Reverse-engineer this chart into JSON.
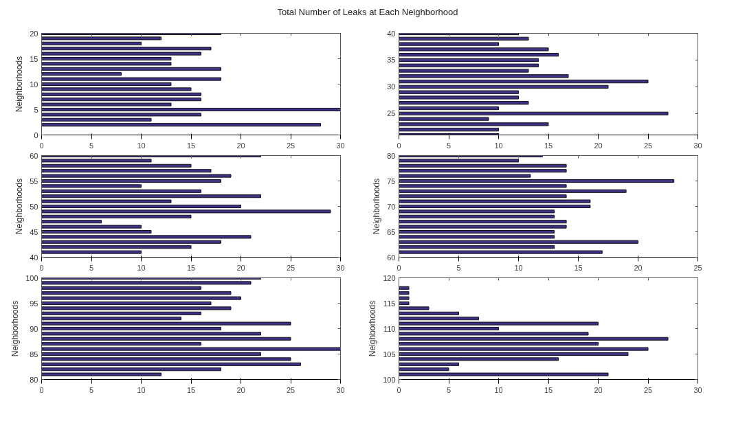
{
  "chart_data": [
    {
      "type": "bar",
      "orientation": "horizontal",
      "title": "Total Number of Leaks at Each Neighborhood",
      "ylabel": "Neighborhoods",
      "color": "#3b3285",
      "x": [
        2,
        3,
        4,
        5,
        6,
        7,
        8,
        9,
        10,
        11,
        12,
        13,
        14,
        15,
        16,
        17,
        18,
        19,
        20
      ],
      "values": [
        28,
        11,
        16,
        30,
        13,
        16,
        16,
        15,
        13,
        18,
        8,
        18,
        13,
        13,
        16,
        17,
        10,
        12,
        18
      ],
      "xlim": [
        0,
        30
      ],
      "xticks": [
        0,
        5,
        10,
        15,
        20,
        25,
        30
      ],
      "ylim": [
        0,
        20
      ],
      "yticks": [
        0,
        5,
        10,
        15,
        20
      ],
      "grid": false
    },
    {
      "type": "bar",
      "orientation": "horizontal",
      "color": "#3b3285",
      "x": [
        21,
        22,
        23,
        24,
        25,
        26,
        27,
        28,
        29,
        30,
        31,
        32,
        33,
        34,
        35,
        36,
        37,
        38,
        39,
        40
      ],
      "values": [
        10,
        10,
        15,
        9,
        27,
        10,
        13,
        12,
        12,
        21,
        25,
        17,
        13,
        14,
        14,
        16,
        15,
        10,
        13,
        12
      ],
      "xlim": [
        0,
        30
      ],
      "xticks": [
        0,
        5,
        10,
        15,
        20,
        25,
        30
      ],
      "ylim": [
        21,
        40
      ],
      "yticks": [
        25,
        30,
        35,
        40
      ],
      "grid": false
    },
    {
      "type": "bar",
      "orientation": "horizontal",
      "ylabel": "Neighborhoods",
      "color": "#3b3285",
      "x": [
        41,
        42,
        43,
        44,
        45,
        46,
        47,
        48,
        49,
        50,
        51,
        52,
        53,
        54,
        55,
        56,
        57,
        58,
        59,
        60
      ],
      "values": [
        10,
        15,
        18,
        21,
        11,
        10,
        6,
        15,
        29,
        20,
        13,
        22,
        16,
        10,
        18,
        19,
        17,
        15,
        11,
        22
      ],
      "xlim": [
        0,
        30
      ],
      "xticks": [
        0,
        5,
        10,
        15,
        20,
        25,
        30
      ],
      "ylim": [
        40,
        60
      ],
      "yticks": [
        40,
        45,
        50,
        55,
        60
      ],
      "grid": false
    },
    {
      "type": "bar",
      "orientation": "horizontal",
      "ylabel": "Neighborhoods",
      "color": "#3b3285",
      "x": [
        61,
        62,
        63,
        64,
        65,
        66,
        67,
        68,
        69,
        70,
        71,
        72,
        73,
        74,
        75,
        76,
        77,
        78,
        79,
        80
      ],
      "values": [
        17,
        13,
        20,
        13,
        13,
        14,
        14,
        13,
        13,
        16,
        16,
        14,
        19,
        14,
        23,
        11,
        14,
        14,
        10,
        12
      ],
      "xlim": [
        0,
        25
      ],
      "xticks": [
        0,
        5,
        10,
        15,
        20,
        25
      ],
      "ylim": [
        60,
        80
      ],
      "yticks": [
        60,
        65,
        70,
        75,
        80
      ],
      "grid": false
    },
    {
      "type": "bar",
      "orientation": "horizontal",
      "ylabel": "Neighborhoods",
      "color": "#3b3285",
      "x": [
        81,
        82,
        83,
        84,
        85,
        86,
        87,
        88,
        89,
        90,
        91,
        92,
        93,
        94,
        95,
        96,
        97,
        98,
        99,
        100
      ],
      "values": [
        12,
        18,
        26,
        25,
        22,
        30,
        16,
        25,
        22,
        18,
        25,
        14,
        16,
        19,
        17,
        20,
        19,
        16,
        21,
        22
      ],
      "xlim": [
        0,
        30
      ],
      "xticks": [
        0,
        5,
        10,
        15,
        20,
        25,
        30
      ],
      "ylim": [
        80,
        100
      ],
      "yticks": [
        80,
        85,
        90,
        95,
        100
      ],
      "grid": false
    },
    {
      "type": "bar",
      "orientation": "horizontal",
      "ylabel": "Neighborhoods",
      "color": "#3b3285",
      "x": [
        101,
        102,
        103,
        104,
        105,
        106,
        107,
        108,
        109,
        110,
        111,
        112,
        113,
        114,
        115,
        116,
        117,
        118
      ],
      "values": [
        21,
        5,
        6,
        16,
        23,
        25,
        20,
        27,
        19,
        10,
        20,
        8,
        6,
        3,
        1,
        1,
        1,
        1
      ],
      "xlim": [
        0,
        30
      ],
      "xticks": [
        0,
        5,
        10,
        15,
        20,
        25,
        30
      ],
      "ylim": [
        100,
        120
      ],
      "yticks": [
        100,
        105,
        110,
        115,
        120
      ],
      "grid": false
    }
  ]
}
